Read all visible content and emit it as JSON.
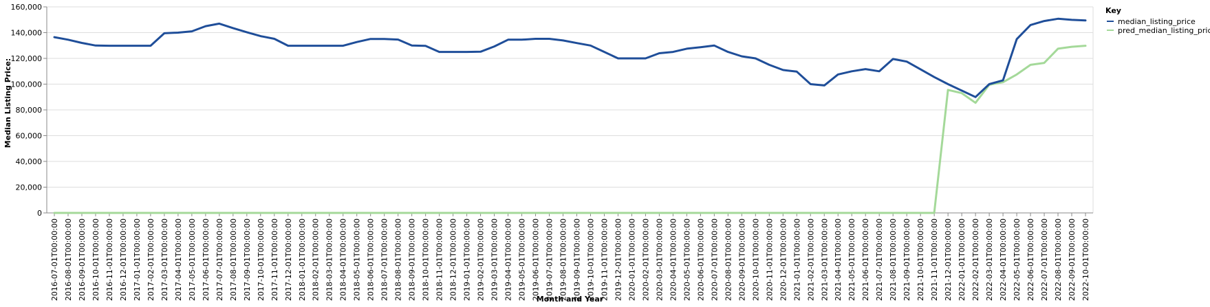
{
  "chart_data": {
    "type": "line",
    "xlabel": "Month and Year",
    "ylabel": "Median Listing Price:",
    "ylim": [
      0,
      160000
    ],
    "yticks": [
      0,
      20000,
      40000,
      60000,
      80000,
      100000,
      120000,
      140000,
      160000
    ],
    "ytick_labels": [
      "0",
      "20,000",
      "40,000",
      "60,000",
      "80,000",
      "100,000",
      "120,000",
      "140,000",
      "160,000"
    ],
    "grid": "horizontal",
    "legend": {
      "title": "Key",
      "position": "top-right"
    },
    "x": [
      "2016-07-01T00:00:00",
      "2016-08-01T00:00:00",
      "2016-09-01T00:00:00",
      "2016-10-01T00:00:00",
      "2016-11-01T00:00:00",
      "2016-12-01T00:00:00",
      "2017-01-01T00:00:00",
      "2017-02-01T00:00:00",
      "2017-03-01T00:00:00",
      "2017-04-01T00:00:00",
      "2017-05-01T00:00:00",
      "2017-06-01T00:00:00",
      "2017-07-01T00:00:00",
      "2017-08-01T00:00:00",
      "2017-09-01T00:00:00",
      "2017-10-01T00:00:00",
      "2017-11-01T00:00:00",
      "2017-12-01T00:00:00",
      "2018-01-01T00:00:00",
      "2018-02-01T00:00:00",
      "2018-03-01T00:00:00",
      "2018-04-01T00:00:00",
      "2018-05-01T00:00:00",
      "2018-06-01T00:00:00",
      "2018-07-01T00:00:00",
      "2018-08-01T00:00:00",
      "2018-09-01T00:00:00",
      "2018-10-01T00:00:00",
      "2018-11-01T00:00:00",
      "2018-12-01T00:00:00",
      "2019-01-01T00:00:00",
      "2019-02-01T00:00:00",
      "2019-03-01T00:00:00",
      "2019-04-01T00:00:00",
      "2019-05-01T00:00:00",
      "2019-06-01T00:00:00",
      "2019-07-01T00:00:00",
      "2019-08-01T00:00:00",
      "2019-09-01T00:00:00",
      "2019-10-01T00:00:00",
      "2019-11-01T00:00:00",
      "2019-12-01T00:00:00",
      "2020-01-01T00:00:00",
      "2020-02-01T00:00:00",
      "2020-03-01T00:00:00",
      "2020-04-01T00:00:00",
      "2020-05-01T00:00:00",
      "2020-06-01T00:00:00",
      "2020-07-01T00:00:00",
      "2020-08-01T00:00:00",
      "2020-09-01T00:00:00",
      "2020-10-01T00:00:00",
      "2020-11-01T00:00:00",
      "2020-12-01T00:00:00",
      "2021-01-01T00:00:00",
      "2021-02-01T00:00:00",
      "2021-03-01T00:00:00",
      "2021-04-01T00:00:00",
      "2021-05-01T00:00:00",
      "2021-06-01T00:00:00",
      "2021-07-01T00:00:00",
      "2021-08-01T00:00:00",
      "2021-09-01T00:00:00",
      "2021-10-01T00:00:00",
      "2021-11-01T00:00:00",
      "2021-12-01T00:00:00",
      "2022-01-01T00:00:00",
      "2022-02-01T00:00:00",
      "2022-03-01T00:00:00",
      "2022-04-01T00:00:00",
      "2022-05-01T00:00:00",
      "2022-06-01T00:00:00",
      "2022-07-01T00:00:00",
      "2022-08-01T00:00:00",
      "2022-09-01T00:00:00",
      "2022-10-01T00:00:00"
    ],
    "series": [
      {
        "name": "median_listing_price",
        "color": "#1f4e99",
        "values": [
          136500,
          134500,
          132000,
          130000,
          129800,
          129800,
          129800,
          129800,
          139500,
          140000,
          141000,
          145000,
          147000,
          143500,
          140300,
          137300,
          135200,
          129800,
          129800,
          129800,
          129800,
          129800,
          132700,
          135100,
          135100,
          134600,
          130000,
          129700,
          125000,
          125000,
          125000,
          125200,
          129300,
          134500,
          134500,
          135200,
          135200,
          133900,
          131900,
          130000,
          125000,
          120000,
          120000,
          120000,
          124000,
          125000,
          127500,
          128700,
          130000,
          125000,
          121600,
          120000,
          115000,
          111000,
          109700,
          100000,
          99000,
          107500,
          110000,
          111700,
          110000,
          119500,
          117500,
          111500,
          105500,
          100000,
          95000,
          90000,
          100000,
          103000,
          135000,
          145900,
          149000,
          150800,
          149900,
          149500
        ]
      },
      {
        "name": "pred_median_listing_price",
        "color": "#a4d999",
        "values": [
          0,
          0,
          0,
          0,
          0,
          0,
          0,
          0,
          0,
          0,
          0,
          0,
          0,
          0,
          0,
          0,
          0,
          0,
          0,
          0,
          0,
          0,
          0,
          0,
          0,
          0,
          0,
          0,
          0,
          0,
          0,
          0,
          0,
          0,
          0,
          0,
          0,
          0,
          0,
          0,
          0,
          0,
          0,
          0,
          0,
          0,
          0,
          0,
          0,
          0,
          0,
          0,
          0,
          0,
          0,
          0,
          0,
          0,
          0,
          0,
          0,
          0,
          0,
          0,
          0,
          95500,
          93000,
          85500,
          99500,
          101500,
          107500,
          115000,
          116500,
          127500,
          129000,
          129800
        ]
      }
    ]
  }
}
